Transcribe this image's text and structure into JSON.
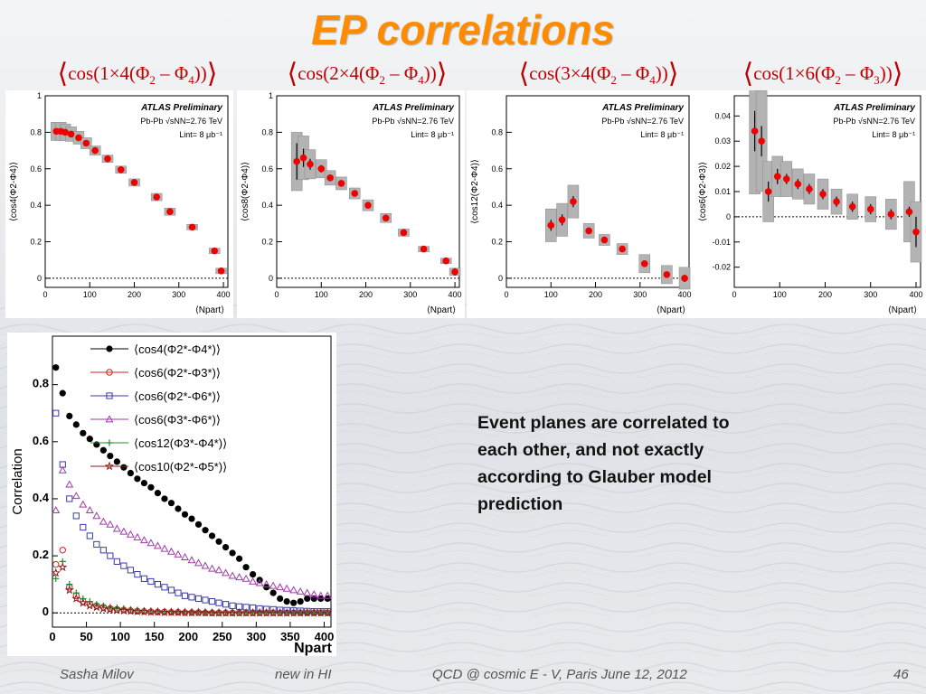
{
  "slide": {
    "title": "EP correlations",
    "note": "Event planes are correlated to each other, and not exactly according to Glauber model prediction",
    "footer": {
      "author": "Sasha Milov",
      "section": "new in HI",
      "event": "QCD @ cosmic E - V, Paris  June 12, 2012",
      "page": "46"
    }
  },
  "formulas": [
    {
      "pre": "cos(1×4(Φ",
      "s1": "2",
      "mid": " – Φ",
      "s2": "4",
      "post": "))"
    },
    {
      "pre": "cos(2×4(Φ",
      "s1": "2",
      "mid": " – Φ",
      "s2": "4",
      "post": "))"
    },
    {
      "pre": "cos(3×4(Φ",
      "s1": "2",
      "mid": " – Φ",
      "s2": "4",
      "post": "))"
    },
    {
      "pre": "cos(1×6(Φ",
      "s1": "2",
      "mid": " – Φ",
      "s2": "3",
      "post": "))"
    }
  ],
  "colors": {
    "title": "#ff8c00",
    "formula": "#c00000",
    "points": "#ee0000",
    "band": "#a8a8a8"
  },
  "chart_data": [
    {
      "type": "scatter",
      "ylabel": "⟨cos4(Φ2-Φ4)⟩",
      "xlabel": "⟨Npart⟩",
      "xlim": [
        0,
        410
      ],
      "ylim": [
        -0.05,
        1.0
      ],
      "xticks": [
        0,
        100,
        200,
        300,
        400
      ],
      "yticks": [
        0,
        0.2,
        0.4,
        0.6,
        0.8,
        1
      ],
      "ytick_labels": [
        "0",
        "0.2",
        "0.4",
        "0.6",
        "0.8",
        "1"
      ],
      "legend": [
        "ATLAS  Preliminary",
        "Pb-Pb √sNN=2.76 TeV",
        "Lint= 8 μb⁻¹"
      ],
      "x": [
        25,
        35,
        45,
        58,
        75,
        92,
        112,
        140,
        170,
        200,
        250,
        280,
        330,
        380,
        395
      ],
      "y": [
        0.805,
        0.805,
        0.8,
        0.79,
        0.77,
        0.74,
        0.7,
        0.655,
        0.595,
        0.525,
        0.445,
        0.365,
        0.28,
        0.15,
        0.04
      ],
      "sys": [
        0.05,
        0.05,
        0.045,
        0.04,
        0.035,
        0.03,
        0.025,
        0.02,
        0.02,
        0.02,
        0.02,
        0.02,
        0.015,
        0.015,
        0.015
      ],
      "stat": [
        0.005,
        0.005,
        0.005,
        0.005,
        0.005,
        0.005,
        0.005,
        0.005,
        0.005,
        0.005,
        0.005,
        0.005,
        0.005,
        0.005,
        0.005
      ]
    },
    {
      "type": "scatter",
      "ylabel": "⟨cos8(Φ2-Φ4)⟩",
      "xlabel": "⟨Npart⟩",
      "xlim": [
        0,
        410
      ],
      "ylim": [
        -0.05,
        1.0
      ],
      "xticks": [
        0,
        100,
        200,
        300,
        400
      ],
      "yticks": [
        0,
        0.2,
        0.4,
        0.6,
        0.8,
        1
      ],
      "ytick_labels": [
        "0",
        "0.2",
        "0.4",
        "0.6",
        "0.8",
        "1"
      ],
      "legend": [
        "ATLAS  Preliminary",
        "Pb-Pb √sNN=2.76 TeV",
        "Lint= 8 μb⁻¹"
      ],
      "x": [
        45,
        60,
        75,
        100,
        120,
        145,
        175,
        205,
        245,
        285,
        330,
        380,
        400
      ],
      "y": [
        0.64,
        0.66,
        0.625,
        0.6,
        0.55,
        0.52,
        0.465,
        0.4,
        0.33,
        0.25,
        0.16,
        0.095,
        0.035
      ],
      "sys": [
        0.16,
        0.12,
        0.08,
        0.05,
        0.04,
        0.035,
        0.03,
        0.03,
        0.025,
        0.02,
        0.015,
        0.015,
        0.02
      ],
      "stat": [
        0.1,
        0.05,
        0.03,
        0.02,
        0.015,
        0.01,
        0.01,
        0.01,
        0.01,
        0.01,
        0.01,
        0.01,
        0.02
      ]
    },
    {
      "type": "scatter",
      "ylabel": "⟨cos12(Φ2-Φ4)⟩",
      "xlabel": "⟨Npart⟩",
      "xlim": [
        0,
        410
      ],
      "ylim": [
        -0.05,
        1.0
      ],
      "xticks": [
        0,
        100,
        200,
        300,
        400
      ],
      "yticks": [
        0,
        0.2,
        0.4,
        0.6,
        0.8
      ],
      "ytick_labels": [
        "0",
        "0.2",
        "0.4",
        "0.6",
        "0.8"
      ],
      "legend": [
        "ATLAS  Preliminary",
        "Pb-Pb √sNN=2.76 TeV",
        "Lint= 8 μb⁻¹"
      ],
      "x": [
        100,
        125,
        150,
        185,
        220,
        260,
        310,
        360,
        400
      ],
      "y": [
        0.29,
        0.32,
        0.42,
        0.26,
        0.21,
        0.16,
        0.08,
        0.02,
        0.0
      ],
      "sys": [
        0.09,
        0.09,
        0.09,
        0.04,
        0.03,
        0.03,
        0.05,
        0.05,
        0.06
      ],
      "stat": [
        0.03,
        0.03,
        0.03,
        0.015,
        0.015,
        0.015,
        0.015,
        0.015,
        0.02
      ]
    },
    {
      "type": "scatter",
      "ylabel": "⟨cos6(Φ2-Φ3)⟩",
      "xlabel": "⟨Npart⟩",
      "xlim": [
        0,
        410
      ],
      "ylim": [
        -0.028,
        0.048
      ],
      "xticks": [
        0,
        100,
        200,
        300,
        400
      ],
      "yticks": [
        -0.02,
        -0.01,
        0,
        0.01,
        0.02,
        0.03,
        0.04
      ],
      "ytick_labels": [
        "-0.02",
        "-0.01",
        "0",
        "0.01",
        "0.02",
        "0.03",
        "0.04"
      ],
      "legend": [
        "ATLAS  Preliminary",
        "Pb-Pb √sNN=2.76 TeV",
        "Lint= 8 μb⁻¹"
      ],
      "x": [
        45,
        60,
        75,
        95,
        115,
        140,
        165,
        195,
        225,
        260,
        300,
        345,
        385,
        400
      ],
      "y": [
        0.034,
        0.03,
        0.01,
        0.016,
        0.015,
        0.013,
        0.011,
        0.009,
        0.006,
        0.004,
        0.003,
        0.001,
        0.002,
        -0.006
      ],
      "sys": [
        0.025,
        0.02,
        0.012,
        0.008,
        0.007,
        0.006,
        0.006,
        0.006,
        0.005,
        0.005,
        0.005,
        0.006,
        0.012,
        0.012
      ],
      "stat": [
        0.008,
        0.006,
        0.004,
        0.003,
        0.002,
        0.002,
        0.002,
        0.002,
        0.002,
        0.002,
        0.002,
        0.002,
        0.002,
        0.006
      ]
    },
    {
      "type": "scatter",
      "ylabel": "Correlation",
      "xlabel": "Npart",
      "xlim": [
        0,
        410
      ],
      "ylim": [
        -0.05,
        0.97
      ],
      "xticks": [
        0,
        50,
        100,
        150,
        200,
        250,
        300,
        350,
        400
      ],
      "yticks": [
        0,
        0.2,
        0.4,
        0.6,
        0.8
      ],
      "ytick_labels": [
        "0",
        "0.2",
        "0.4",
        "0.6",
        "0.8"
      ],
      "series": [
        {
          "name": "⟨cos4(Φ2*-Φ4*)⟩",
          "marker": "filled-circle",
          "color": "#000000",
          "x": [
            5,
            15,
            25,
            35,
            45,
            55,
            65,
            75,
            85,
            95,
            105,
            115,
            125,
            135,
            145,
            155,
            165,
            175,
            185,
            195,
            205,
            215,
            225,
            235,
            245,
            255,
            265,
            275,
            285,
            295,
            305,
            315,
            325,
            335,
            345,
            355,
            365,
            375,
            385,
            395,
            405
          ],
          "y": [
            0.86,
            0.77,
            0.69,
            0.66,
            0.63,
            0.61,
            0.59,
            0.57,
            0.55,
            0.53,
            0.51,
            0.49,
            0.47,
            0.455,
            0.44,
            0.42,
            0.4,
            0.385,
            0.365,
            0.345,
            0.33,
            0.31,
            0.29,
            0.27,
            0.25,
            0.23,
            0.21,
            0.19,
            0.16,
            0.135,
            0.115,
            0.09,
            0.07,
            0.05,
            0.04,
            0.035,
            0.04,
            0.05,
            0.05,
            0.05,
            0.05
          ]
        },
        {
          "name": "⟨cos6(Φ2*-Φ3*)⟩",
          "marker": "open-circle",
          "color": "#d62020",
          "x": [
            5,
            15,
            25,
            35,
            45,
            55,
            65,
            75,
            85,
            95,
            105,
            115,
            125,
            135,
            145,
            155,
            165,
            175,
            185,
            195,
            205,
            215,
            225,
            235,
            245,
            255,
            265,
            275,
            285,
            295,
            305,
            315,
            325,
            335,
            345,
            355,
            365,
            375,
            385,
            395,
            405
          ],
          "y": [
            0.17,
            0.22,
            0.09,
            0.06,
            0.04,
            0.03,
            0.025,
            0.02,
            0.015,
            0.012,
            0.01,
            0.008,
            0.006,
            0.005,
            0.004,
            0.003,
            0.003,
            0.002,
            0.002,
            0.001,
            0.001,
            0.001,
            0.0,
            0.0,
            0.0,
            0.0,
            0.0,
            0.0,
            0.0,
            0.0,
            0.0,
            0.0,
            0.0,
            0.0,
            0.0,
            0.0,
            0.0,
            0.0,
            0.0,
            0.0,
            0.0
          ]
        },
        {
          "name": "⟨cos6(Φ2*-Φ6*)⟩",
          "marker": "open-square",
          "color": "#3a3aa6",
          "x": [
            5,
            15,
            25,
            35,
            45,
            55,
            65,
            75,
            85,
            95,
            105,
            115,
            125,
            135,
            145,
            155,
            165,
            175,
            185,
            195,
            205,
            215,
            225,
            235,
            245,
            255,
            265,
            275,
            285,
            295,
            305,
            315,
            325,
            335,
            345,
            355,
            365,
            375,
            385,
            395,
            405
          ],
          "y": [
            0.7,
            0.52,
            0.4,
            0.34,
            0.3,
            0.27,
            0.24,
            0.22,
            0.2,
            0.18,
            0.165,
            0.15,
            0.135,
            0.12,
            0.11,
            0.1,
            0.09,
            0.08,
            0.07,
            0.06,
            0.055,
            0.05,
            0.045,
            0.04,
            0.035,
            0.03,
            0.025,
            0.022,
            0.02,
            0.018,
            0.015,
            0.013,
            0.012,
            0.01,
            0.009,
            0.008,
            0.007,
            0.006,
            0.005,
            0.005,
            0.005
          ]
        },
        {
          "name": "⟨cos6(Φ3*-Φ6*)⟩",
          "marker": "open-triangle",
          "color": "#a03aa8",
          "x": [
            5,
            15,
            25,
            35,
            45,
            55,
            65,
            75,
            85,
            95,
            105,
            115,
            125,
            135,
            145,
            155,
            165,
            175,
            185,
            195,
            205,
            215,
            225,
            235,
            245,
            255,
            265,
            275,
            285,
            295,
            305,
            315,
            325,
            335,
            345,
            355,
            365,
            375,
            385,
            395,
            405
          ],
          "y": [
            0.36,
            0.5,
            0.45,
            0.41,
            0.38,
            0.36,
            0.34,
            0.32,
            0.31,
            0.295,
            0.285,
            0.275,
            0.265,
            0.255,
            0.245,
            0.235,
            0.225,
            0.215,
            0.205,
            0.195,
            0.185,
            0.175,
            0.165,
            0.155,
            0.15,
            0.14,
            0.13,
            0.125,
            0.12,
            0.11,
            0.105,
            0.1,
            0.095,
            0.09,
            0.085,
            0.08,
            0.075,
            0.07,
            0.065,
            0.06,
            0.06
          ]
        },
        {
          "name": "⟨cos12(Φ3*-Φ4*)⟩",
          "marker": "open-cross",
          "color": "#1c8c2a",
          "x": [
            5,
            15,
            25,
            35,
            45,
            55,
            65,
            75,
            85,
            95,
            105,
            115,
            125,
            135,
            145,
            155,
            165,
            175,
            185,
            195,
            205,
            215,
            225,
            235,
            245,
            255,
            265,
            275,
            285,
            295,
            305,
            315,
            325,
            335,
            345,
            355,
            365,
            375,
            385,
            395,
            405
          ],
          "y": [
            0.12,
            0.18,
            0.1,
            0.07,
            0.05,
            0.04,
            0.03,
            0.025,
            0.02,
            0.018,
            0.015,
            0.012,
            0.01,
            0.008,
            0.007,
            0.006,
            0.005,
            0.005,
            0.004,
            0.004,
            0.003,
            0.003,
            0.002,
            0.002,
            0.002,
            0.002,
            0.002,
            0.001,
            0.001,
            0.001,
            0.001,
            0.001,
            0.001,
            0.001,
            0.001,
            0.001,
            0.001,
            0.001,
            0.001,
            0.001,
            0.001
          ]
        },
        {
          "name": "⟨cos10(Φ2*-Φ5*)⟩",
          "marker": "star",
          "color": "#8a1c1c",
          "x": [
            5,
            15,
            25,
            35,
            45,
            55,
            65,
            75,
            85,
            95,
            105,
            115,
            125,
            135,
            145,
            155,
            165,
            175,
            185,
            195,
            205,
            215,
            225,
            235,
            245,
            255,
            265,
            275,
            285,
            295,
            305,
            315,
            325,
            335,
            345,
            355,
            365,
            375,
            385,
            395,
            405
          ],
          "y": [
            0.14,
            0.16,
            0.08,
            0.05,
            0.035,
            0.025,
            0.02,
            0.015,
            0.012,
            0.01,
            0.008,
            0.006,
            0.005,
            0.004,
            0.003,
            0.003,
            0.002,
            0.002,
            0.002,
            0.001,
            0.001,
            0.001,
            0.001,
            0.0,
            0.0,
            0.0,
            0.0,
            0.0,
            0.0,
            0.0,
            0.0,
            0.0,
            0.0,
            0.0,
            0.0,
            0.0,
            0.0,
            0.0,
            0.0,
            0.0,
            0.0
          ]
        }
      ]
    }
  ]
}
